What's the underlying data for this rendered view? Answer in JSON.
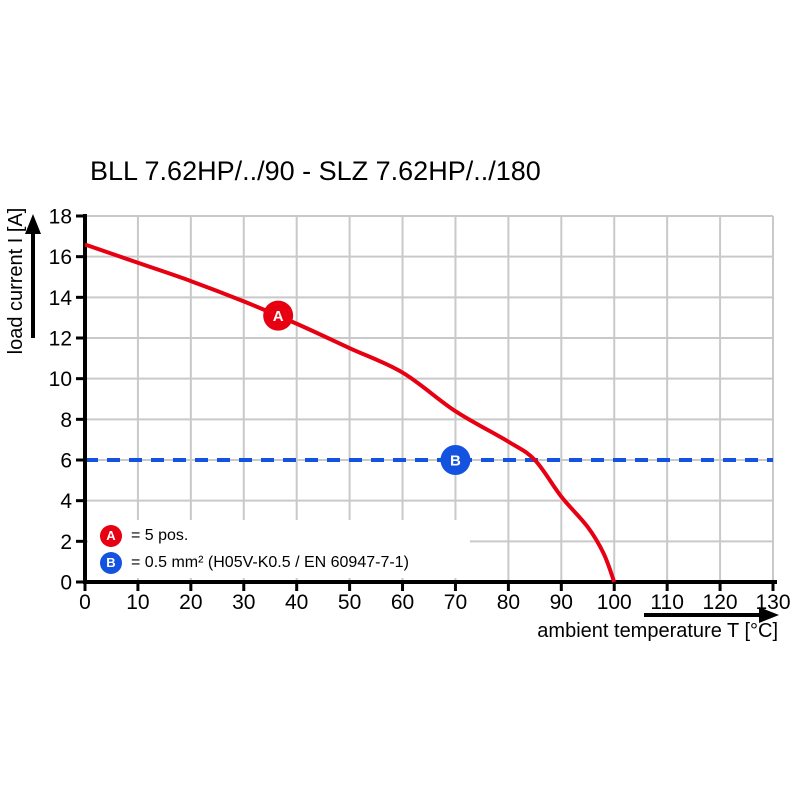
{
  "title": "BLL 7.62HP/../90 - SLZ 7.62HP/../180",
  "colors": {
    "curve_red": "#e60012",
    "limit_blue": "#1353e0",
    "grid": "#c9c9c9",
    "axis": "#000000",
    "background": "#ffffff"
  },
  "chart_data": {
    "type": "line",
    "title": "BLL 7.62HP/../90 - SLZ 7.62HP/../180",
    "xlabel": "ambient temperature T [°C]",
    "ylabel": "load current I [A]",
    "xlim": [
      0,
      130
    ],
    "ylim": [
      0,
      18
    ],
    "x_ticks": [
      0,
      10,
      20,
      30,
      40,
      50,
      60,
      70,
      80,
      90,
      100,
      110,
      120,
      130
    ],
    "y_ticks": [
      0,
      2,
      4,
      6,
      8,
      10,
      12,
      14,
      16,
      18
    ],
    "grid": true,
    "series": [
      {
        "name": "A",
        "label": "5 pos.",
        "style": "solid-curve",
        "color": "#e60012",
        "points": [
          [
            0,
            16.6
          ],
          [
            10,
            15.7
          ],
          [
            20,
            14.8
          ],
          [
            30,
            13.8
          ],
          [
            40,
            12.7
          ],
          [
            50,
            11.5
          ],
          [
            60,
            10.3
          ],
          [
            70,
            8.4
          ],
          [
            80,
            6.9
          ],
          [
            85,
            6.0
          ],
          [
            90,
            4.2
          ],
          [
            95,
            2.7
          ],
          [
            98,
            1.4
          ],
          [
            100,
            0
          ]
        ]
      },
      {
        "name": "B",
        "label": "0.5 mm² (H05V-K0.5 / EN 60947-7-1)",
        "style": "dashed-horizontal",
        "color": "#1353e0",
        "value": 6,
        "x_range": [
          0,
          130
        ]
      }
    ],
    "markers": [
      {
        "symbol": "A",
        "x": 36.5,
        "y": 13.1,
        "color": "#e60012"
      },
      {
        "symbol": "B",
        "x": 70,
        "y": 6,
        "color": "#1353e0"
      }
    ],
    "legend": {
      "position": "bottom-left-inside",
      "items": [
        {
          "symbol": "A",
          "color": "#e60012",
          "text": "= 5 pos."
        },
        {
          "symbol": "B",
          "color": "#1353e0",
          "text": "= 0.5 mm² (H05V-K0.5 / EN 60947-7-1)"
        }
      ]
    }
  }
}
